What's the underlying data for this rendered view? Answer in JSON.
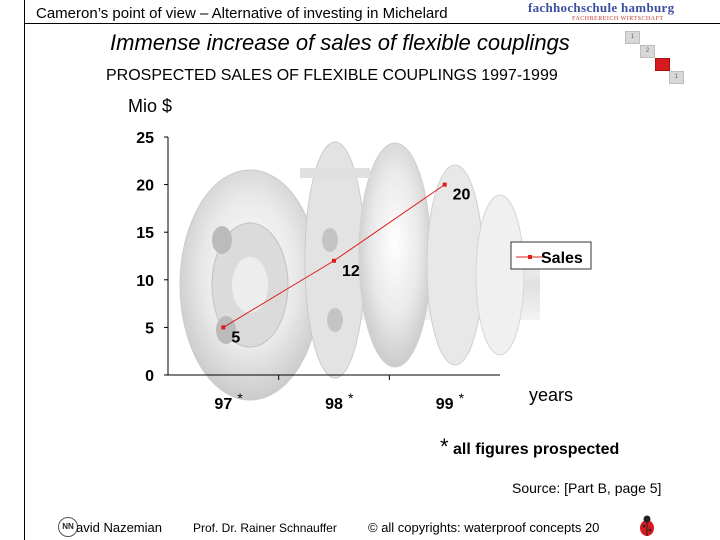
{
  "header": {
    "title": "Cameron’s point of view – Alternative of investing in Michelard",
    "logo_top": "fachhochschule hamburg",
    "logo_bottom": "FACHBEREICH WIRTSCHAFT"
  },
  "subtitle": "Immense increase of sales of flexible couplings",
  "nav": {
    "labels": [
      "1",
      "2",
      "",
      "1"
    ],
    "active_color": "#d71920"
  },
  "chart_data": {
    "type": "line",
    "title": "PROSPECTED SALES OF FLEXIBLE COUPLINGS 1997-1999",
    "ylabel": "Mio $",
    "xlabel": "years",
    "categories": [
      "97",
      "98",
      "99"
    ],
    "category_marks": [
      "*",
      "*",
      "*"
    ],
    "series": [
      {
        "name": "Sales",
        "values": [
          5,
          12,
          20
        ],
        "color": "#e01b1b"
      }
    ],
    "data_labels": [
      "5",
      "12",
      "20"
    ],
    "yticks": [
      "0",
      "5",
      "10",
      "15",
      "20",
      "25"
    ],
    "ylim": [
      0,
      25
    ],
    "grid": false,
    "legend": "right"
  },
  "footnote": {
    "marker": "*",
    "text": "all figures prospected"
  },
  "source": "Source: [Part B, page 5]",
  "footer": {
    "badge": "NN",
    "author": "avid Nazemian",
    "professor": "Prof. Dr. Rainer Schnauffer",
    "copyright": "© all copyrights: waterproof concepts 20"
  }
}
